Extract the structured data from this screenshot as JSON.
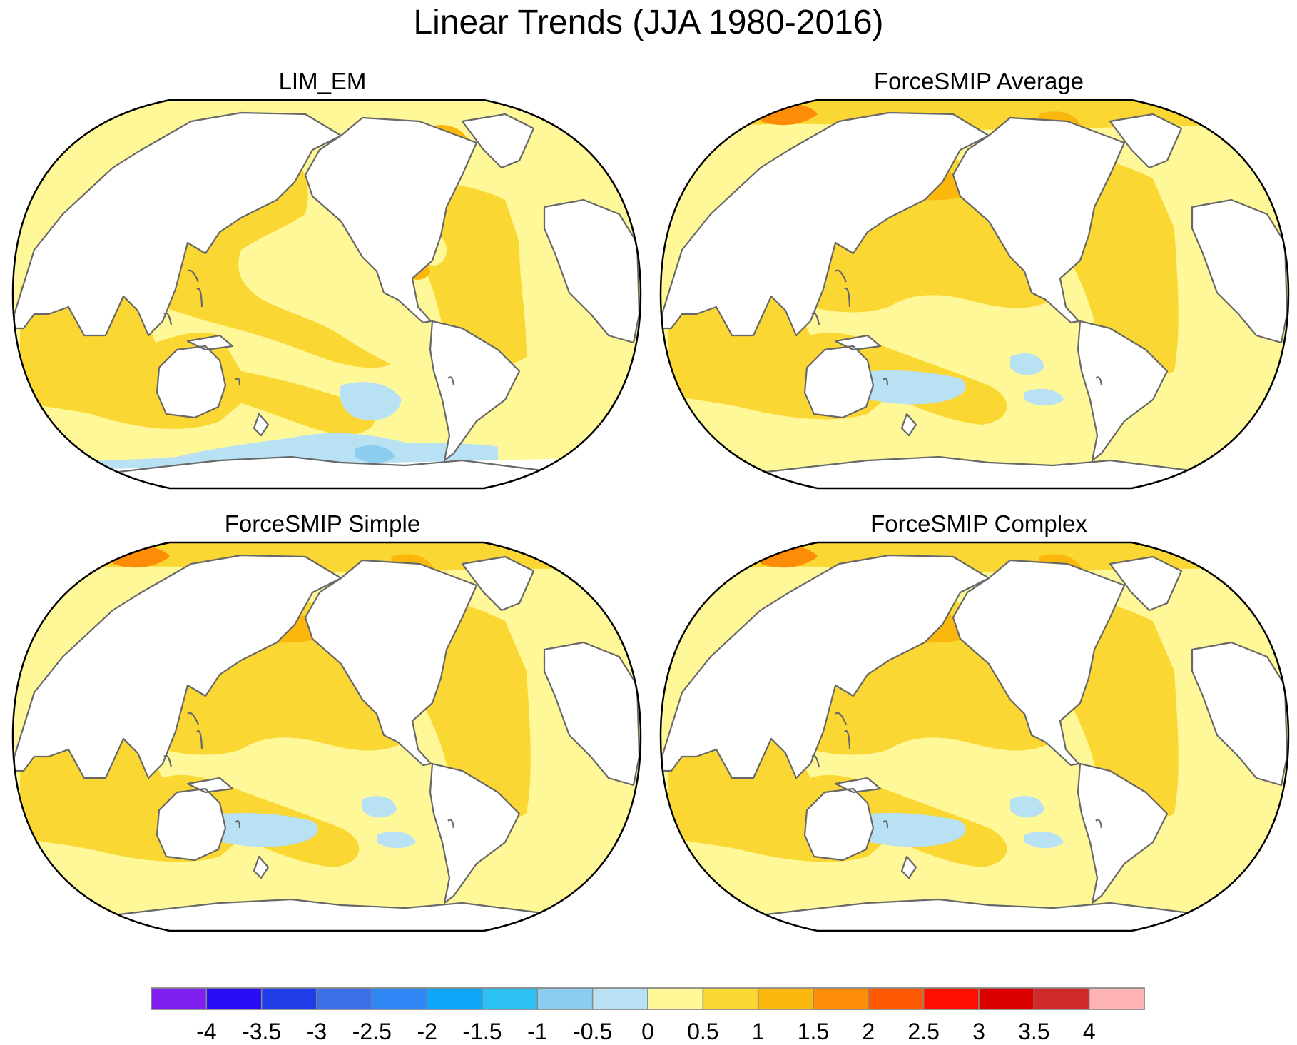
{
  "title": "Linear Trends (JJA 1980-2016)",
  "panels": [
    {
      "title": "LIM_EM",
      "variant": "lim"
    },
    {
      "title": "ForceSMIP Average",
      "variant": "force"
    },
    {
      "title": "ForceSMIP Simple",
      "variant": "force"
    },
    {
      "title": "ForceSMIP Complex",
      "variant": "force"
    }
  ],
  "colorbar": {
    "levels": [
      "-4",
      "-3.5",
      "-3",
      "-2.5",
      "-2",
      "-1.5",
      "-1",
      "-0.5",
      "0",
      "0.5",
      "1",
      "1.5",
      "2",
      "2.5",
      "3",
      "3.5",
      "4"
    ],
    "colors": [
      "#7f1ff0",
      "#2a0cf5",
      "#1f3de8",
      "#3c6ee6",
      "#2f86f4",
      "#0fa6fa",
      "#2cc2f4",
      "#8ccdef",
      "#b8e2f3",
      "#fff899",
      "#fbd733",
      "#fcb70c",
      "#fd8c07",
      "#fe5a02",
      "#fe0f00",
      "#dd0000",
      "#cf2a2a",
      "#fdb3b3"
    ]
  },
  "colors": {
    "land": "#ffffff",
    "coast": "#686868",
    "warm_light": "#fff899",
    "warm_mid": "#fbd733",
    "warm_high": "#fcb70c",
    "warm_orange": "#fd8c07",
    "cool_light": "#b8e2f3",
    "cool_mid": "#8ccdef"
  }
}
